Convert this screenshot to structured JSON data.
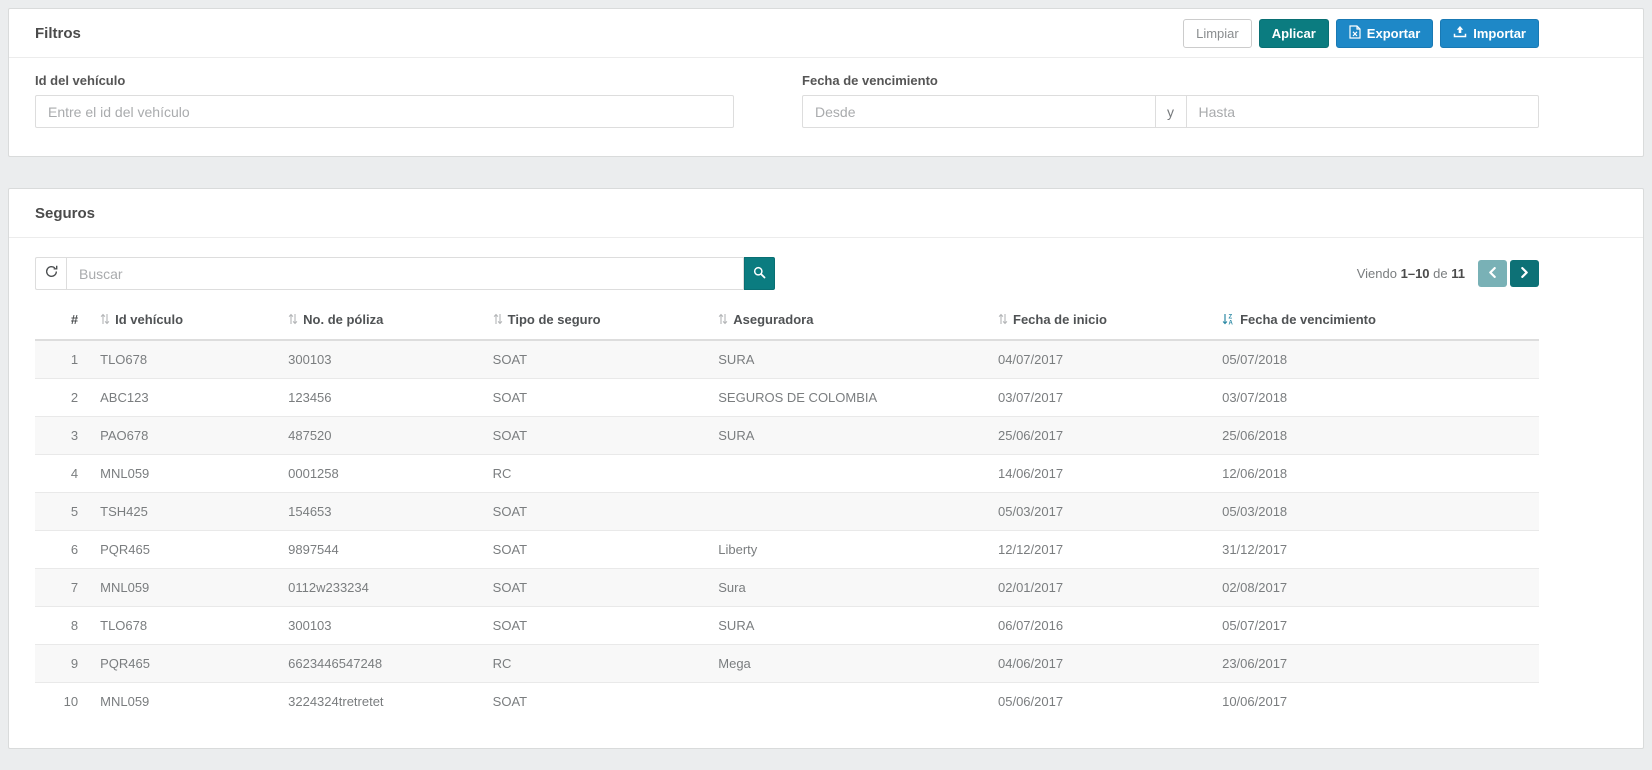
{
  "filters": {
    "title": "Filtros",
    "buttons": {
      "limpiar": "Limpiar",
      "aplicar": "Aplicar",
      "exportar": "Exportar",
      "importar": "Importar"
    },
    "vehicle_id": {
      "label": "Id del vehículo",
      "placeholder": "Entre el id del vehículo"
    },
    "due_date": {
      "label": "Fecha de vencimiento",
      "from_placeholder": "Desde",
      "separator": "y",
      "to_placeholder": "Hasta"
    }
  },
  "seguros": {
    "title": "Seguros",
    "search": {
      "placeholder": "Buscar"
    },
    "paging": {
      "viendo": "Viendo",
      "range": "1–10",
      "de": "de",
      "total": "11"
    },
    "table": {
      "columns": [
        {
          "key": "num",
          "label": "#",
          "sort": "none"
        },
        {
          "key": "id-vehiculo",
          "label": "Id vehículo",
          "sort": "both"
        },
        {
          "key": "no-poliza",
          "label": "No. de póliza",
          "sort": "both"
        },
        {
          "key": "tipo-seguro",
          "label": "Tipo de seguro",
          "sort": "both"
        },
        {
          "key": "aseguradora",
          "label": "Aseguradora",
          "sort": "both"
        },
        {
          "key": "fecha-inicio",
          "label": "Fecha de inicio",
          "sort": "both"
        },
        {
          "key": "fecha-vencimiento",
          "label": "Fecha de vencimiento",
          "sort": "desc"
        }
      ],
      "rows": [
        [
          "1",
          "TLO678",
          "300103",
          "SOAT",
          "SURA",
          "04/07/2017",
          "05/07/2018"
        ],
        [
          "2",
          "ABC123",
          "123456",
          "SOAT",
          "SEGUROS DE COLOMBIA",
          "03/07/2017",
          "03/07/2018"
        ],
        [
          "3",
          "PAO678",
          "487520",
          "SOAT",
          "SURA",
          "25/06/2017",
          "25/06/2018"
        ],
        [
          "4",
          "MNL059",
          "0001258",
          "RC",
          "",
          "14/06/2017",
          "12/06/2018"
        ],
        [
          "5",
          "TSH425",
          "154653",
          "SOAT",
          "",
          "05/03/2017",
          "05/03/2018"
        ],
        [
          "6",
          "PQR465",
          "9897544",
          "SOAT",
          "Liberty",
          "12/12/2017",
          "31/12/2017"
        ],
        [
          "7",
          "MNL059",
          "0112w233234",
          "SOAT",
          "Sura",
          "02/01/2017",
          "02/08/2017"
        ],
        [
          "8",
          "TLO678",
          "300103",
          "SOAT",
          "SURA",
          "06/07/2016",
          "05/07/2017"
        ],
        [
          "9",
          "PQR465",
          "6623446547248",
          "RC",
          "Mega",
          "04/06/2017",
          "23/06/2017"
        ],
        [
          "10",
          "MNL059",
          "3224324tretretet",
          "SOAT",
          "",
          "05/06/2017",
          "10/06/2017"
        ]
      ]
    }
  },
  "icons": {
    "exportar": "excel-file-icon",
    "importar": "upload-icon",
    "search": "search-icon",
    "refresh": "refresh-icon",
    "prev": "chevron-left-icon",
    "next": "chevron-right-icon",
    "sort_inactive": "sort-icon",
    "sort_active": "sort-alpha-desc-icon"
  },
  "colors": {
    "teal": "#0b7c80",
    "teal_border": "#096f73",
    "teal_dark": "#0d7176",
    "teal_light": "#79b1b6",
    "blue": "#1e88c7",
    "blue_border": "#1979b4",
    "sort_active": "#2e8aa5"
  }
}
